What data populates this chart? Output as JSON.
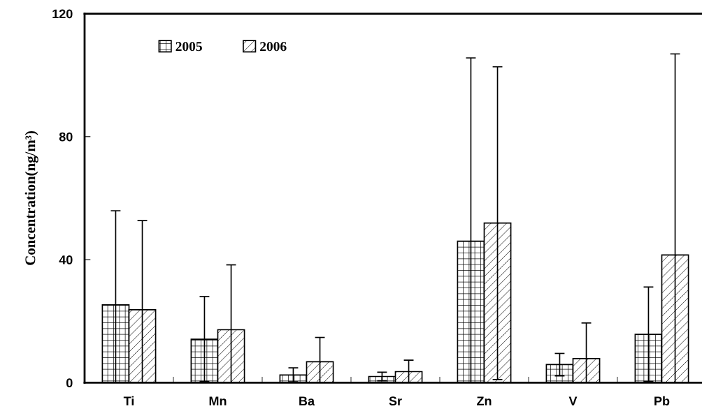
{
  "chart_data": {
    "type": "bar",
    "ylabel": "Concentration(ng/m³)",
    "categories": [
      "Ti",
      "Mn",
      "Ba",
      "Sr",
      "Zn",
      "V",
      "Pb"
    ],
    "series": [
      {
        "name": "2005",
        "color": "#000000",
        "values": [
          25.3,
          14.1,
          2.5,
          2.0,
          46.0,
          5.9,
          15.7
        ],
        "errors": [
          [
            0,
            55.9
          ],
          [
            0.4,
            28.0
          ],
          [
            0.3,
            4.8
          ],
          [
            0.6,
            3.4
          ],
          [
            0,
            105.6
          ],
          [
            2.2,
            9.5
          ],
          [
            0.4,
            31.1
          ]
        ]
      },
      {
        "name": "2006",
        "color": "#000000",
        "values": [
          23.7,
          17.2,
          6.8,
          3.6,
          51.9,
          7.8,
          41.5
        ],
        "errors": [
          [
            0,
            52.7
          ],
          [
            0,
            38.3
          ],
          [
            0,
            14.7
          ],
          [
            0,
            7.3
          ],
          [
            1.0,
            102.7
          ],
          [
            0,
            19.4
          ],
          [
            0,
            106.9
          ]
        ]
      }
    ],
    "ylim": [
      0,
      120
    ],
    "yticks": [
      0,
      40,
      80,
      120
    ],
    "grid": false,
    "legend": "top left"
  }
}
